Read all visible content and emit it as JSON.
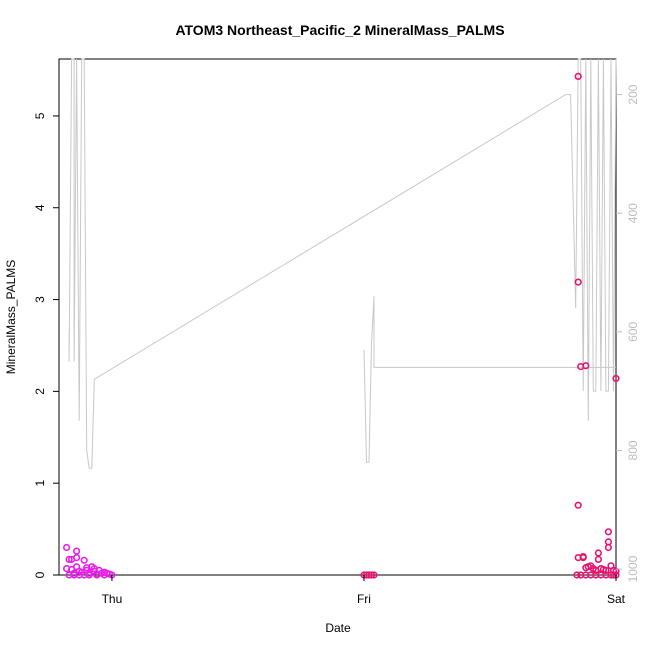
{
  "chart_data": {
    "type": "scatter",
    "title": "ATOM3 Northeast_Pacific_2 MineralMass_PALMS",
    "xlabel": "Date",
    "ylabel": "MineralMass_PALMS",
    "x_ticks": [
      "Thu",
      "Fri",
      "Sat"
    ],
    "x_range_days": [
      -0.21,
      2.0
    ],
    "ylim": [
      0,
      5.62
    ],
    "y_ticks": [
      0,
      1,
      2,
      3,
      4,
      5
    ],
    "right_axis": {
      "label": "",
      "reversed": true,
      "range": [
        1010,
        140
      ],
      "ticks": [
        200,
        400,
        600,
        800,
        1000
      ],
      "color": "#bdbdbd"
    },
    "colors": {
      "early_points": "#e81ee8",
      "late_points": "#e8126e",
      "pressure_line": "#c8c8c8"
    },
    "series": [
      {
        "values": [
          [
            -0.18,
            0.3
          ],
          [
            -0.18,
            0.07
          ],
          [
            -0.17,
            0.17
          ],
          [
            -0.16,
            0.17
          ],
          [
            -0.16,
            0.06
          ],
          [
            -0.15,
            0.02
          ],
          [
            -0.14,
            0.26
          ],
          [
            -0.14,
            0.19
          ],
          [
            -0.14,
            0.09
          ],
          [
            -0.13,
            0.04
          ],
          [
            -0.12,
            0.03
          ],
          [
            -0.11,
            0.16
          ],
          [
            -0.1,
            0.08
          ],
          [
            -0.1,
            0.05
          ],
          [
            -0.09,
            0.02
          ],
          [
            -0.08,
            0.09
          ],
          [
            -0.07,
            0.04
          ],
          [
            -0.07,
            0.07
          ],
          [
            -0.06,
            0.01
          ],
          [
            -0.05,
            0.05
          ],
          [
            -0.04,
            0.02
          ],
          [
            -0.03,
            0.03
          ],
          [
            -0.02,
            0.02
          ],
          [
            -0.01,
            0.01
          ],
          [
            -0.15,
            0.0
          ],
          [
            -0.13,
            0.0
          ],
          [
            -0.11,
            0.0
          ],
          [
            -0.09,
            0.0
          ],
          [
            -0.06,
            0.0
          ],
          [
            -0.03,
            0.0
          ],
          [
            0.0,
            0.0
          ],
          [
            -0.17,
            0.0
          ]
        ]
      },
      {
        "values": [
          [
            1.0,
            0.0
          ],
          [
            1.01,
            0.0
          ],
          [
            1.02,
            0.0
          ],
          [
            1.03,
            0.0
          ],
          [
            1.04,
            0.0
          ],
          [
            1.845,
            0.0
          ],
          [
            1.85,
            5.43
          ],
          [
            1.85,
            3.19
          ],
          [
            1.85,
            0.76
          ],
          [
            1.85,
            0.19
          ],
          [
            1.86,
            2.27
          ],
          [
            1.87,
            0.19
          ],
          [
            1.88,
            2.28
          ],
          [
            1.87,
            0.2
          ],
          [
            1.88,
            0.08
          ],
          [
            1.89,
            0.09
          ],
          [
            1.9,
            0.1
          ],
          [
            1.91,
            0.07
          ],
          [
            1.92,
            0.05
          ],
          [
            1.93,
            0.24
          ],
          [
            1.93,
            0.17
          ],
          [
            1.94,
            0.07
          ],
          [
            1.95,
            0.06
          ],
          [
            1.96,
            0.05
          ],
          [
            1.97,
            0.36
          ],
          [
            1.97,
            0.3
          ],
          [
            1.97,
            0.47
          ],
          [
            1.98,
            0.1
          ],
          [
            1.99,
            0.05
          ],
          [
            2.0,
            0.04
          ],
          [
            2.0,
            2.14
          ],
          [
            1.86,
            0.0
          ],
          [
            1.88,
            0.0
          ],
          [
            1.9,
            0.0
          ],
          [
            1.92,
            0.0
          ],
          [
            1.94,
            0.0
          ],
          [
            1.96,
            0.0
          ],
          [
            1.98,
            0.0
          ],
          [
            1.99,
            0.0
          ],
          [
            2.0,
            0.0
          ]
        ]
      }
    ],
    "pressure_line": [
      [
        -0.17,
        600
      ],
      [
        -0.17,
        650
      ],
      [
        -0.16,
        140
      ],
      [
        -0.15,
        140
      ],
      [
        -0.15,
        650
      ],
      [
        -0.14,
        140
      ],
      [
        -0.13,
        750
      ],
      [
        -0.12,
        140
      ],
      [
        -0.11,
        140
      ],
      [
        -0.1,
        800
      ],
      [
        -0.09,
        830
      ],
      [
        -0.08,
        830
      ],
      [
        -0.07,
        680
      ],
      [
        1.8,
        200
      ],
      [
        1.82,
        200
      ],
      [
        1.84,
        560
      ],
      [
        1.85,
        140
      ],
      [
        1.86,
        140
      ],
      [
        1.87,
        700
      ],
      [
        1.88,
        140
      ],
      [
        1.89,
        750
      ],
      [
        1.9,
        140
      ],
      [
        1.91,
        700
      ],
      [
        1.92,
        700
      ],
      [
        1.93,
        140
      ],
      [
        1.94,
        700
      ],
      [
        1.95,
        140
      ],
      [
        1.96,
        700
      ],
      [
        1.97,
        700
      ],
      [
        1.98,
        140
      ],
      [
        1.99,
        700
      ],
      [
        2.0,
        140
      ]
    ],
    "pressure_segment_fri": [
      [
        1.0,
        630
      ],
      [
        1.01,
        820
      ],
      [
        1.02,
        820
      ],
      [
        1.03,
        620
      ],
      [
        1.04,
        540
      ],
      [
        1.04,
        660
      ],
      [
        2.0,
        660
      ]
    ]
  }
}
